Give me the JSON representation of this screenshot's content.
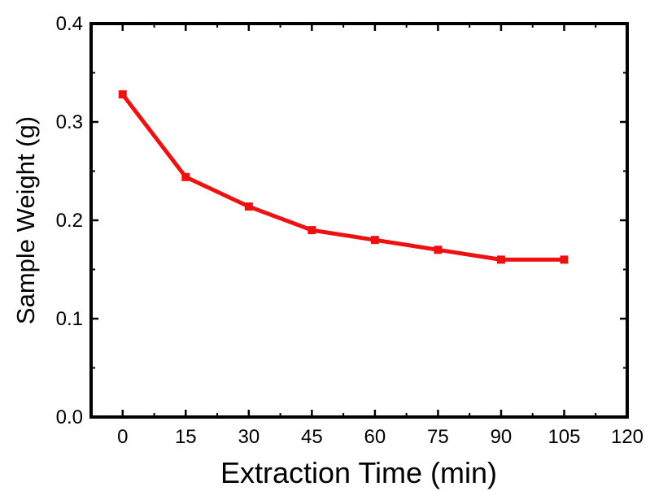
{
  "chart_data": {
    "type": "line",
    "xlabel": "Extraction Time (min)",
    "ylabel": "Sample Weight (g)",
    "xlim": [
      -7.5,
      120
    ],
    "ylim": [
      0,
      0.4
    ],
    "xticks": [
      0,
      15,
      30,
      45,
      60,
      75,
      90,
      105,
      120
    ],
    "xtick_labels": [
      "0",
      "15",
      "30",
      "45",
      "60",
      "75",
      "90",
      "105",
      "120"
    ],
    "yticks": [
      0,
      0.1,
      0.2,
      0.3,
      0.4
    ],
    "ytick_labels": [
      "0.0",
      "0.1",
      "0.2",
      "0.3",
      "0.4"
    ],
    "grid": false,
    "series": [
      {
        "color": "#ee1111",
        "marker": "square",
        "x": [
          0,
          15,
          30,
          45,
          60,
          75,
          90,
          105
        ],
        "y": [
          0.328,
          0.244,
          0.214,
          0.19,
          0.18,
          0.17,
          0.16,
          0.16
        ]
      }
    ]
  }
}
